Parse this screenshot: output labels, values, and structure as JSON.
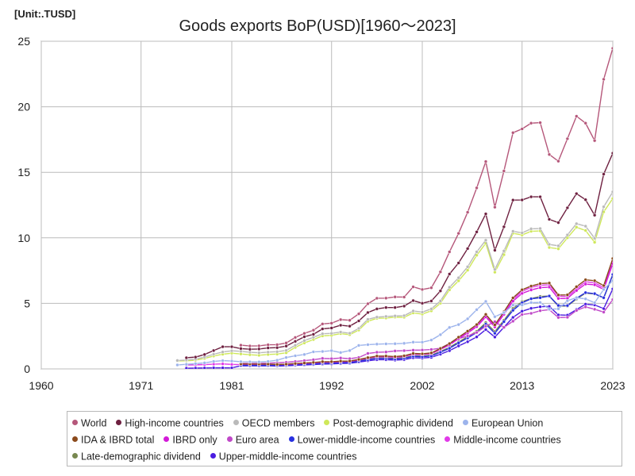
{
  "unit_label": "[Unit:.TUSD]",
  "chart_data": {
    "type": "line",
    "title": "Goods exports BoP(USD)[1960～2023]",
    "xlabel": "",
    "ylabel": "",
    "xlim": [
      1960,
      2023
    ],
    "ylim": [
      0,
      25
    ],
    "x_ticks": [
      1960,
      1971,
      1981,
      1992,
      2002,
      2013,
      2023
    ],
    "y_ticks": [
      0,
      5,
      10,
      15,
      20,
      25
    ],
    "grid": true,
    "legend_position": "bottom",
    "series": [
      {
        "name": "World",
        "color": "#b5577a",
        "start": 1982,
        "values": [
          1.81,
          1.75,
          1.76,
          1.84,
          1.85,
          1.98,
          2.4,
          2.71,
          2.95,
          3.43,
          3.49,
          3.76,
          3.71,
          4.2,
          4.97,
          5.39,
          5.4,
          5.49,
          5.48,
          6.26,
          6.06,
          6.19,
          7.4,
          8.93,
          10.34,
          11.95,
          13.81,
          15.82,
          12.34,
          15.1,
          18.02,
          18.31,
          18.75,
          18.79,
          16.36,
          15.85,
          17.56,
          19.28,
          18.75,
          17.42,
          22.1,
          24.46,
          23.3
        ]
      },
      {
        "name": "High-income countries",
        "color": "#6e2040",
        "start": 1976,
        "values": [
          0.85,
          0.9,
          1.1,
          1.4,
          1.69,
          1.69,
          1.55,
          1.5,
          1.52,
          1.6,
          1.62,
          1.74,
          2.1,
          2.45,
          2.64,
          3.05,
          3.12,
          3.33,
          3.26,
          3.66,
          4.3,
          4.58,
          4.68,
          4.68,
          4.79,
          5.21,
          5.01,
          5.18,
          5.95,
          7.24,
          8.08,
          9.18,
          10.45,
          11.83,
          9.05,
          10.84,
          12.88,
          12.89,
          13.13,
          13.13,
          11.41,
          11.16,
          12.29,
          13.37,
          12.91,
          11.73,
          14.86,
          16.46,
          15.65
        ]
      },
      {
        "name": "OECD members",
        "color": "#bababa",
        "start": 1975,
        "values": [
          0.64,
          0.68,
          0.74,
          0.9,
          1.12,
          1.29,
          1.38,
          1.34,
          1.27,
          1.23,
          1.28,
          1.31,
          1.41,
          1.8,
          2.16,
          2.41,
          2.68,
          2.71,
          2.81,
          2.72,
          3.09,
          3.78,
          3.95,
          4.0,
          4.04,
          4.06,
          4.42,
          4.33,
          4.58,
          5.18,
          6.23,
          6.95,
          7.79,
          8.93,
          9.82,
          7.59,
          9.0,
          10.5,
          10.38,
          10.69,
          10.71,
          9.5,
          9.39,
          10.22,
          11.08,
          10.89,
          9.97,
          12.37,
          13.51,
          13.28
        ]
      },
      {
        "name": "Post-demographic dividend",
        "color": "#cfe85a",
        "start": 1975,
        "values": [
          0.61,
          0.62,
          0.66,
          0.8,
          0.98,
          1.12,
          1.2,
          1.14,
          1.08,
          1.04,
          1.1,
          1.13,
          1.23,
          1.64,
          1.98,
          2.24,
          2.52,
          2.56,
          2.69,
          2.61,
          2.96,
          3.63,
          3.86,
          3.88,
          3.95,
          3.94,
          4.27,
          4.18,
          4.43,
          5.01,
          6.03,
          6.72,
          7.53,
          8.67,
          9.58,
          7.38,
          8.71,
          10.35,
          10.22,
          10.5,
          10.53,
          9.26,
          9.16,
          10.0,
          10.81,
          10.56,
          9.66,
          11.98,
          13.0,
          12.66
        ]
      },
      {
        "name": "European Union",
        "color": "#9db4ec",
        "start": 1975,
        "values": [
          0.3,
          0.35,
          0.4,
          0.46,
          0.57,
          0.63,
          0.6,
          0.55,
          0.54,
          0.53,
          0.57,
          0.66,
          0.87,
          1.0,
          1.1,
          1.3,
          1.33,
          1.39,
          1.25,
          1.4,
          1.79,
          1.85,
          1.89,
          1.91,
          1.92,
          1.95,
          2.04,
          2.04,
          2.2,
          2.61,
          3.16,
          3.38,
          3.82,
          4.52,
          5.15,
          3.98,
          4.29,
          4.87,
          4.87,
          5.06,
          5.07,
          4.56,
          4.58,
          5.2,
          5.44,
          5.34,
          5.05,
          6.06,
          6.73,
          6.74
        ]
      },
      {
        "name": "IDA & IBRD total",
        "color": "#8b4a1c",
        "start": 1982,
        "values": [
          0.38,
          0.37,
          0.37,
          0.37,
          0.34,
          0.36,
          0.41,
          0.45,
          0.49,
          0.55,
          0.55,
          0.59,
          0.6,
          0.72,
          0.86,
          0.98,
          0.98,
          0.94,
          1.0,
          1.18,
          1.15,
          1.22,
          1.56,
          1.93,
          2.42,
          2.88,
          3.38,
          4.16,
          3.36,
          4.36,
          5.42,
          6.04,
          6.32,
          6.51,
          6.55,
          5.64,
          5.65,
          6.27,
          6.8,
          6.73,
          6.36,
          8.42,
          9.38,
          8.71
        ]
      },
      {
        "name": "IBRD only",
        "color": "#d31ad8",
        "start": 1982,
        "values": [
          0.36,
          0.35,
          0.35,
          0.35,
          0.33,
          0.34,
          0.38,
          0.42,
          0.46,
          0.51,
          0.51,
          0.55,
          0.57,
          0.68,
          0.82,
          0.93,
          0.93,
          0.89,
          0.95,
          1.12,
          1.1,
          1.16,
          1.48,
          1.83,
          2.3,
          2.74,
          3.22,
          3.96,
          3.2,
          4.16,
          5.17,
          5.76,
          6.02,
          6.2,
          6.24,
          5.37,
          5.38,
          5.98,
          6.47,
          6.42,
          6.06,
          8.03,
          8.94,
          8.3
        ]
      },
      {
        "name": "Euro area",
        "color": "#c048c8",
        "start": 1982,
        "values": [
          0.42,
          0.42,
          0.42,
          0.44,
          0.47,
          0.5,
          0.56,
          0.63,
          0.7,
          0.8,
          0.78,
          0.83,
          0.78,
          0.87,
          1.18,
          1.27,
          1.29,
          1.37,
          1.39,
          1.43,
          1.44,
          1.48,
          1.58,
          1.94,
          2.3,
          2.51,
          2.78,
          3.26,
          3.6,
          3.17,
          3.64,
          4.15,
          4.24,
          4.44,
          4.52,
          3.92,
          3.94,
          4.46,
          4.73,
          4.55,
          4.33,
          5.29,
          5.64,
          5.58
        ]
      },
      {
        "name": "Lower-middle-income countries",
        "color": "#2830e0",
        "start": 1982,
        "values": [
          0.27,
          0.27,
          0.27,
          0.28,
          0.27,
          0.29,
          0.32,
          0.35,
          0.38,
          0.42,
          0.43,
          0.47,
          0.48,
          0.58,
          0.7,
          0.8,
          0.79,
          0.75,
          0.8,
          0.96,
          0.93,
          0.99,
          1.27,
          1.57,
          1.98,
          2.36,
          2.78,
          3.41,
          2.72,
          3.6,
          4.47,
          5.04,
          5.35,
          5.43,
          5.56,
          4.84,
          4.83,
          5.39,
          5.82,
          5.74,
          5.43,
          7.2,
          8.02,
          7.62
        ]
      },
      {
        "name": "Middle-income countries",
        "color": "#e13ae8",
        "start": 1976,
        "values": [
          0.3,
          0.31,
          0.33,
          0.36,
          0.38,
          0.34,
          0.33,
          0.32,
          0.32,
          0.32,
          0.31,
          0.33,
          0.37,
          0.41,
          0.45,
          0.51,
          0.52,
          0.56,
          0.58,
          0.7,
          0.84,
          0.95,
          0.94,
          0.9,
          0.96,
          1.14,
          1.11,
          1.18,
          1.51,
          1.87,
          2.35,
          2.79,
          3.28,
          4.04,
          3.26,
          4.27,
          5.3,
          5.92,
          6.22,
          6.38,
          6.42,
          5.55,
          5.53,
          6.11,
          6.65,
          6.57,
          6.2,
          8.21,
          9.04,
          8.44
        ]
      },
      {
        "name": "Late-demographic dividend",
        "color": "#788850",
        "start": 1982,
        "values": [
          0.32,
          0.31,
          0.31,
          0.31,
          0.29,
          0.31,
          0.35,
          0.38,
          0.41,
          0.47,
          0.47,
          0.5,
          0.51,
          0.61,
          0.73,
          0.83,
          0.83,
          0.8,
          0.85,
          1.0,
          0.98,
          1.04,
          1.33,
          1.64,
          2.06,
          2.45,
          2.87,
          3.53,
          2.85,
          3.71,
          4.61,
          5.13,
          5.37,
          5.53,
          5.56,
          4.79,
          4.8,
          5.33,
          5.78,
          5.72,
          5.41,
          7.16,
          7.97,
          7.4
        ]
      },
      {
        "name": "Upper-middle-income countries",
        "color": "#4a1ce0",
        "start": 1976,
        "values": [
          0.05,
          0.06,
          0.07,
          0.08,
          0.08,
          0.08,
          0.24,
          0.23,
          0.23,
          0.24,
          0.22,
          0.24,
          0.27,
          0.3,
          0.33,
          0.37,
          0.38,
          0.41,
          0.43,
          0.52,
          0.62,
          0.7,
          0.7,
          0.67,
          0.71,
          0.85,
          0.83,
          0.88,
          1.12,
          1.39,
          1.75,
          2.07,
          2.44,
          3.0,
          2.43,
          3.17,
          3.93,
          4.4,
          4.62,
          4.74,
          4.77,
          4.12,
          4.1,
          4.53,
          4.94,
          4.88,
          4.6,
          6.1,
          6.72,
          6.27
        ]
      }
    ]
  }
}
